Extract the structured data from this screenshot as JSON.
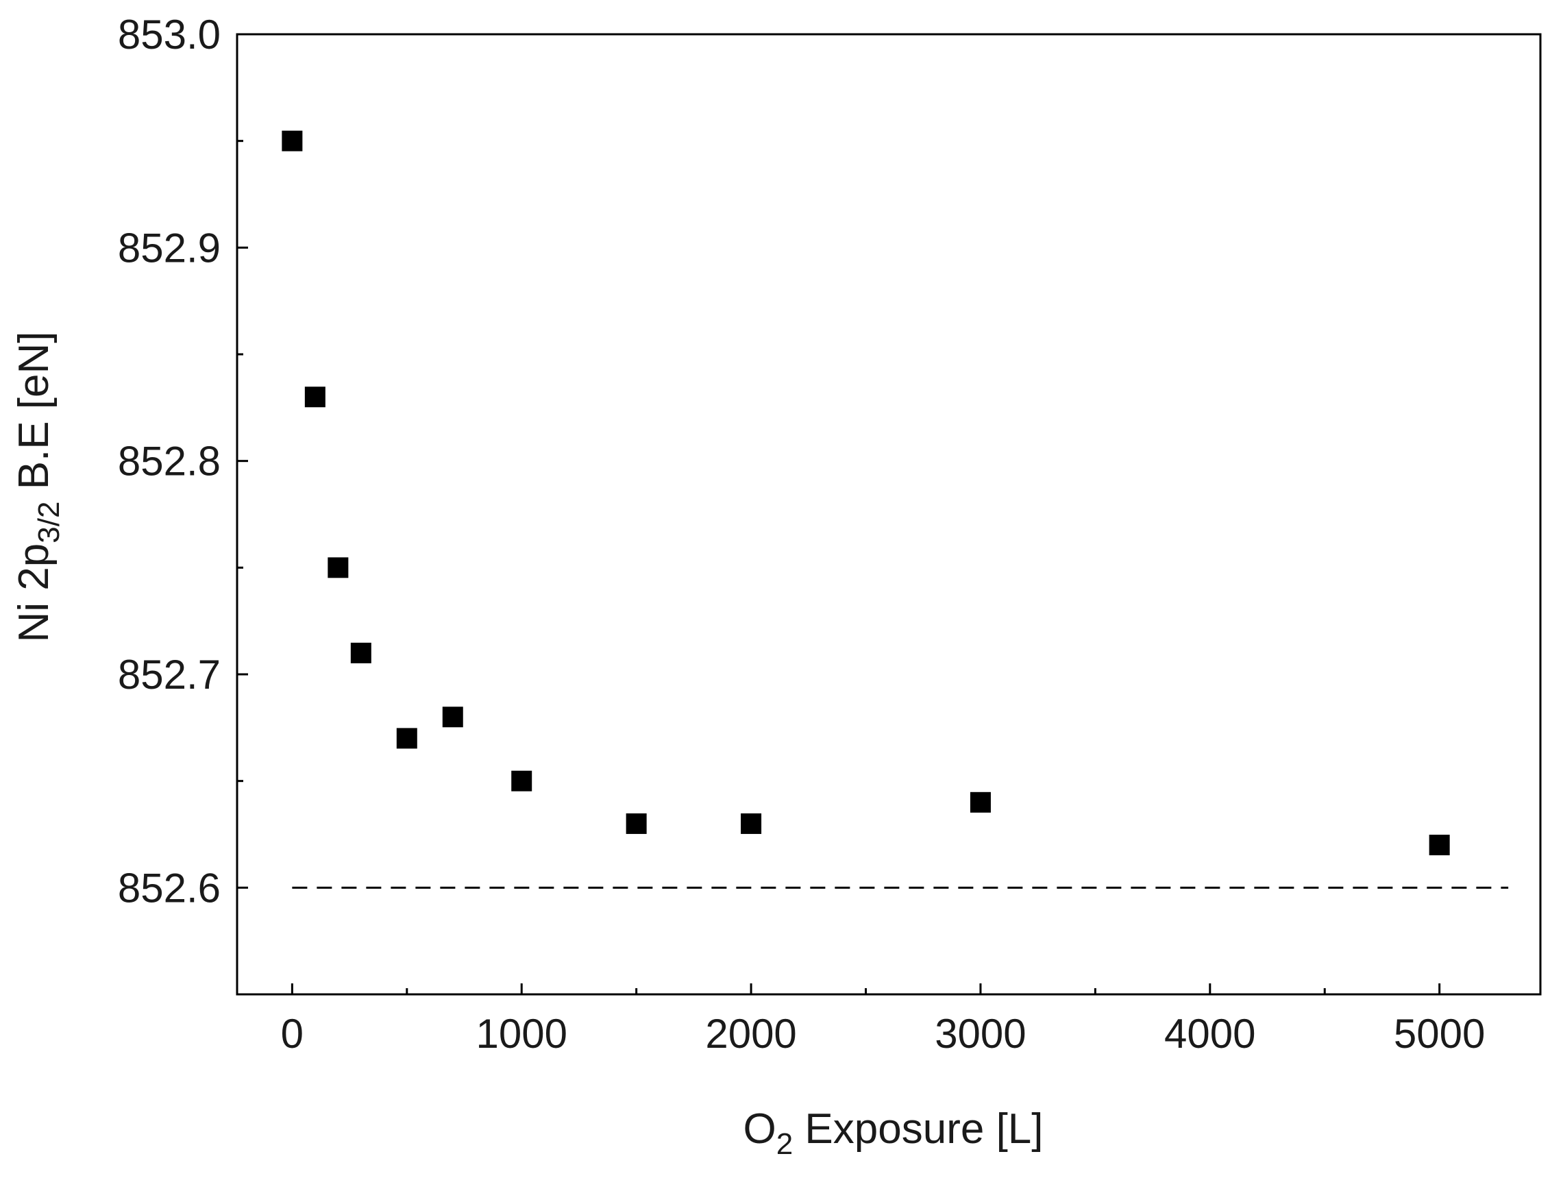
{
  "chart_data": {
    "type": "scatter",
    "title": "",
    "xlabel": {
      "main": "O",
      "sub": "2",
      "rest": " Exposure [L]"
    },
    "ylabel": {
      "main": "Ni 2p",
      "sub": "3/2",
      "rest": " B.E [eN]"
    },
    "xlim": [
      -240,
      5440
    ],
    "ylim": [
      852.55,
      853.0
    ],
    "x_ticks": [
      0,
      1000,
      2000,
      3000,
      4000,
      5000
    ],
    "x_tick_labels": [
      "0",
      "1000",
      "2000",
      "3000",
      "4000",
      "5000"
    ],
    "x_minor_ticks": [
      500,
      1500,
      2500,
      3500,
      4500
    ],
    "y_ticks": [
      852.6,
      852.7,
      852.8,
      852.9,
      853.0
    ],
    "y_tick_labels": [
      "852.6",
      "852.7",
      "852.8",
      "852.9",
      "853.0"
    ],
    "y_minor_ticks": [
      852.65,
      852.75,
      852.85,
      852.95
    ],
    "series": [
      {
        "marker": "square",
        "color": "#000000",
        "points": [
          {
            "x": 0,
            "y": 852.95
          },
          {
            "x": 100,
            "y": 852.83
          },
          {
            "x": 200,
            "y": 852.75
          },
          {
            "x": 300,
            "y": 852.71
          },
          {
            "x": 500,
            "y": 852.67
          },
          {
            "x": 700,
            "y": 852.68
          },
          {
            "x": 1000,
            "y": 852.65
          },
          {
            "x": 1500,
            "y": 852.63
          },
          {
            "x": 2000,
            "y": 852.63
          },
          {
            "x": 3000,
            "y": 852.64
          },
          {
            "x": 5000,
            "y": 852.62
          }
        ]
      }
    ],
    "reference_line": {
      "y": 852.6,
      "x_from": 0,
      "x_to": 5300,
      "style": "dashed",
      "color": "#000000"
    },
    "grid": false,
    "legend": "none"
  }
}
